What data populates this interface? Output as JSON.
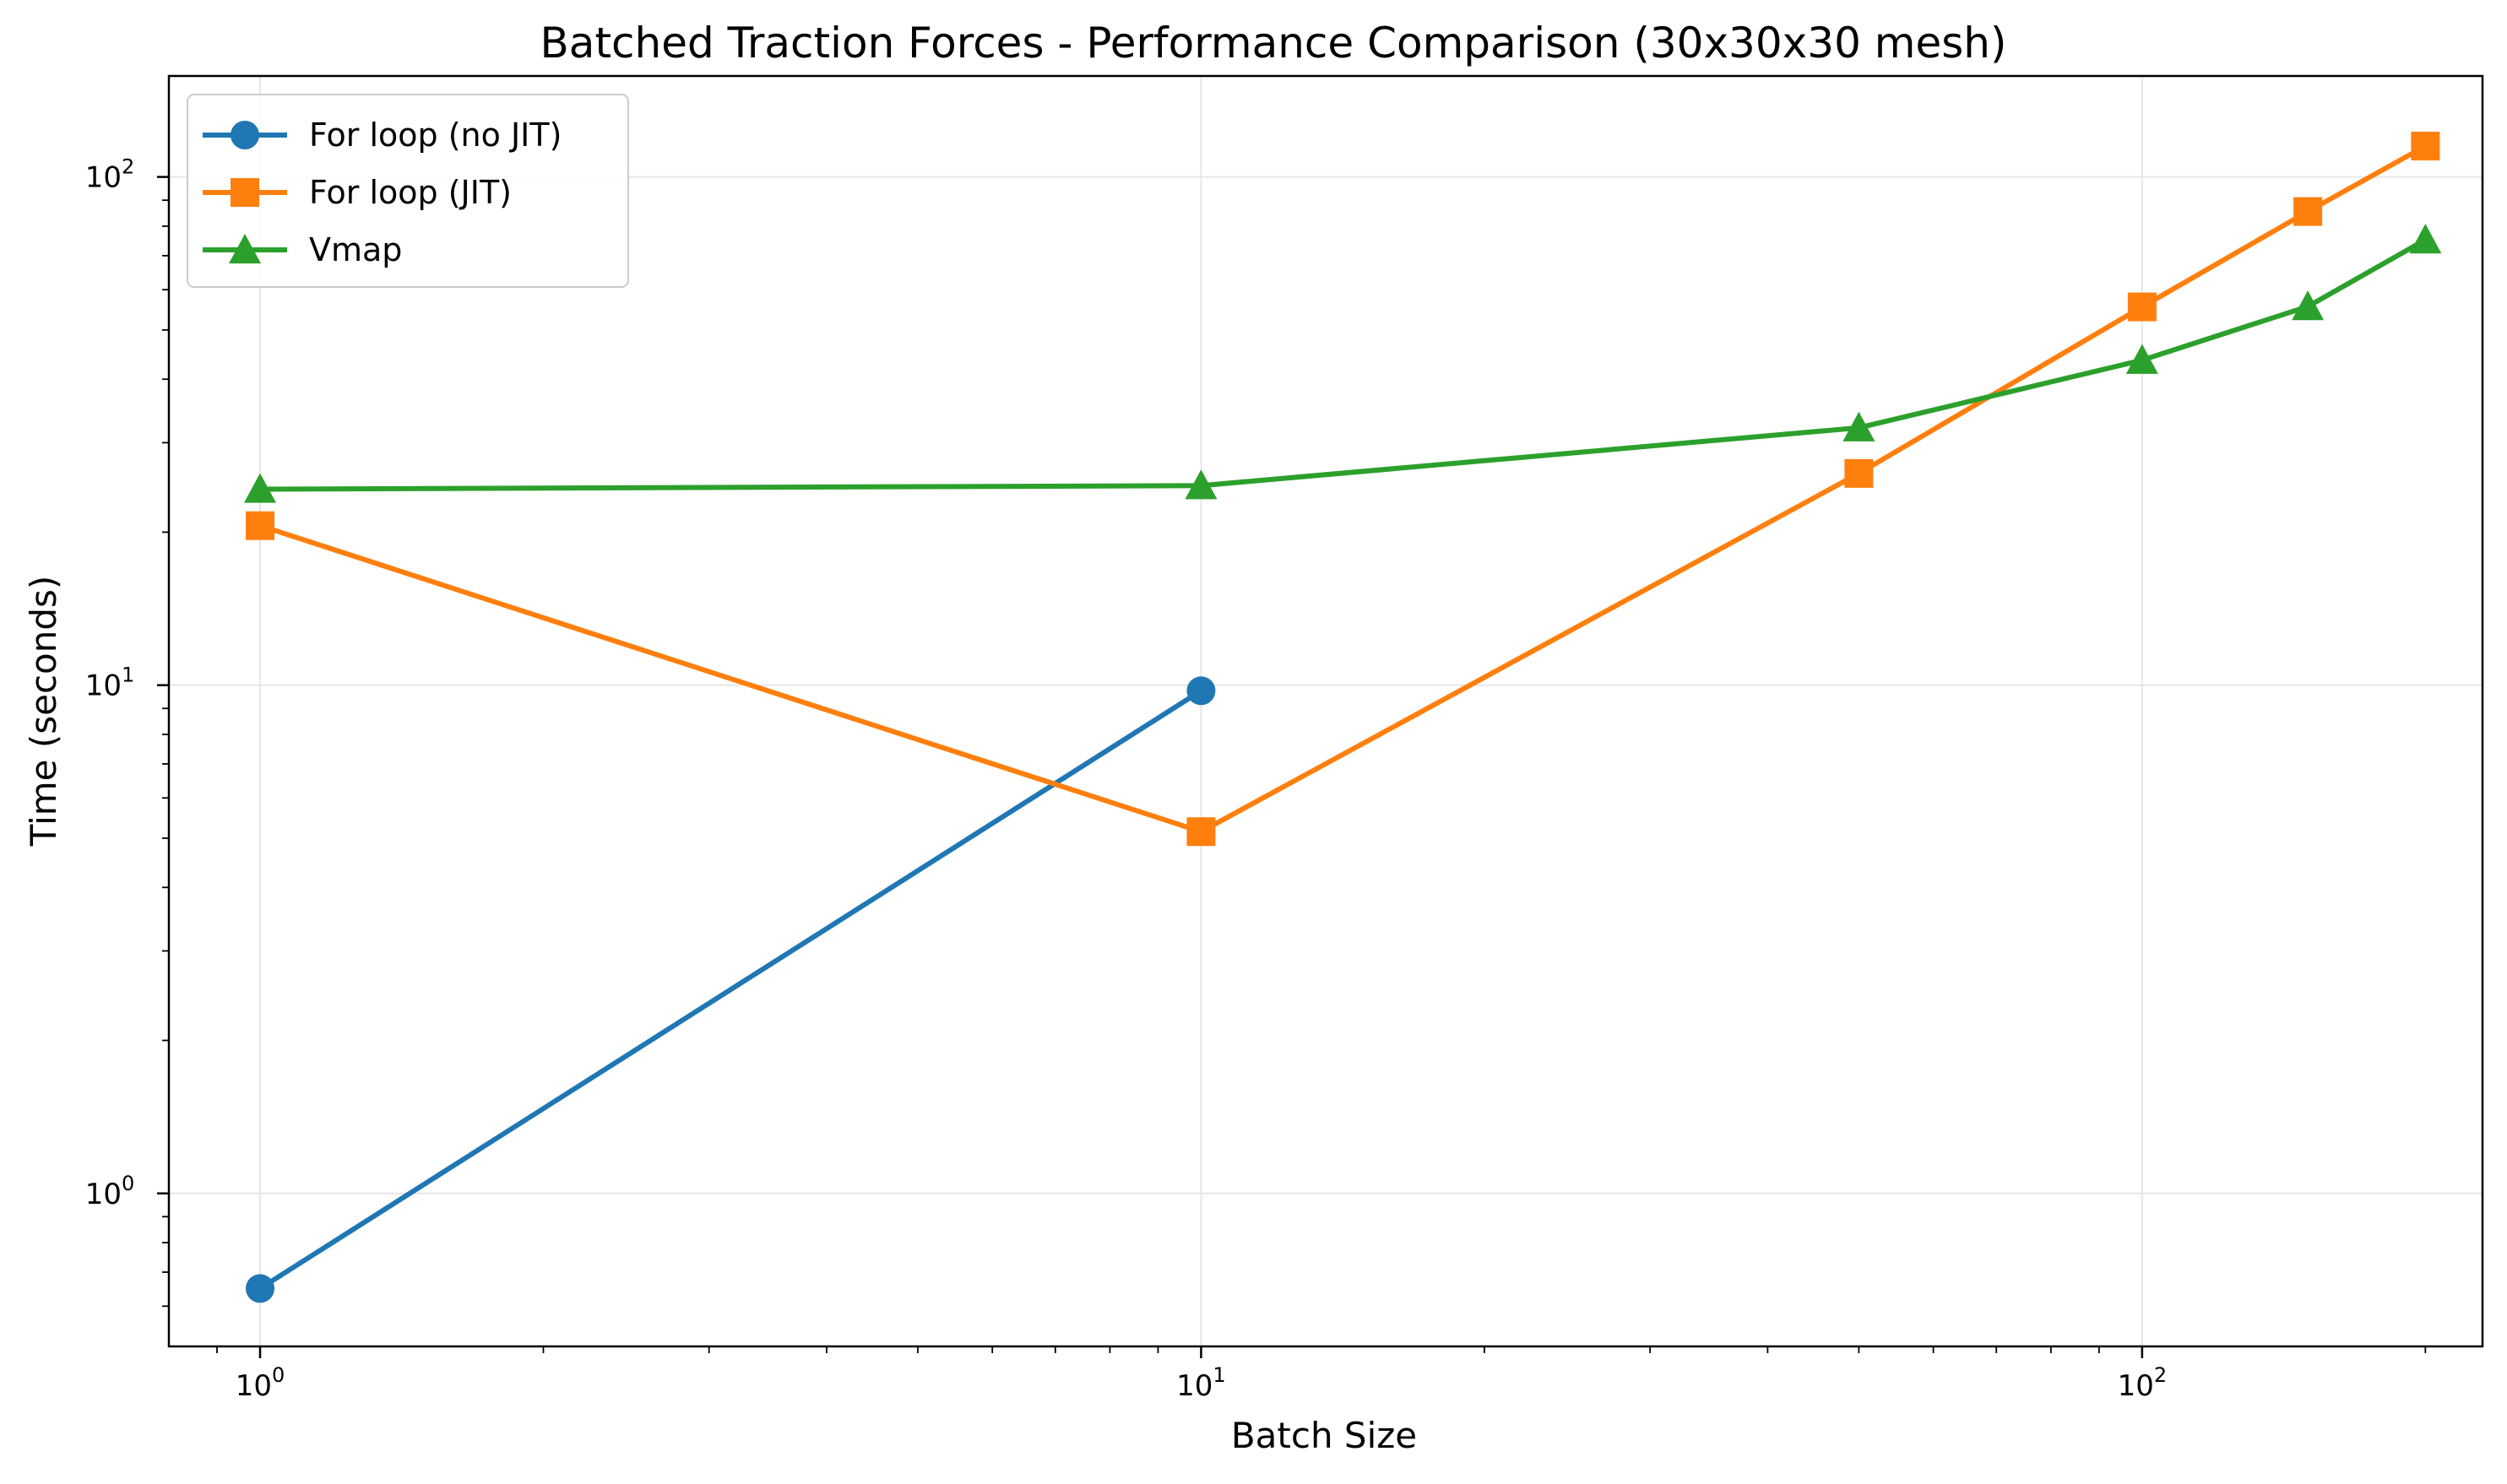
{
  "chart_data": {
    "type": "line",
    "title": "Batched Traction Forces - Performance Comparison (30x30x30 mesh)",
    "xlabel": "Batch Size",
    "ylabel": "Time (seconds)",
    "xscale": "log",
    "yscale": "log",
    "xlim": [
      0.8,
      230
    ],
    "ylim": [
      0.5,
      158
    ],
    "grid": true,
    "legend_position": "top-left",
    "x_ticks": [
      {
        "value": 1,
        "base": "10",
        "exp": "0"
      },
      {
        "value": 10,
        "base": "10",
        "exp": "1"
      },
      {
        "value": 100,
        "base": "10",
        "exp": "2"
      }
    ],
    "y_ticks": [
      {
        "value": 1,
        "base": "10",
        "exp": "0"
      },
      {
        "value": 10,
        "base": "10",
        "exp": "1"
      },
      {
        "value": 100,
        "base": "10",
        "exp": "2"
      }
    ],
    "series": [
      {
        "name": "For loop (no JIT)",
        "color": "#1f77b4",
        "marker": "circle",
        "x": [
          1,
          10
        ],
        "y": [
          0.65,
          9.75
        ]
      },
      {
        "name": "For loop (JIT)",
        "color": "#ff7f0e",
        "marker": "square",
        "x": [
          1,
          10,
          50,
          100,
          150,
          200
        ],
        "y": [
          20.6,
          5.15,
          26.1,
          55.5,
          85.5,
          115
        ]
      },
      {
        "name": "Vmap",
        "color": "#2ca02c",
        "marker": "triangle",
        "x": [
          1,
          10,
          50,
          100,
          150,
          200
        ],
        "y": [
          24.3,
          24.7,
          32.1,
          43.6,
          55.6,
          75.2
        ]
      }
    ]
  }
}
